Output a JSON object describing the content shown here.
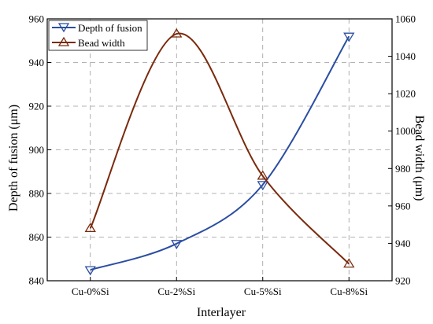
{
  "chart_data": {
    "type": "line",
    "categories": [
      "Cu-0%Si",
      "Cu-2%Si",
      "Cu-5%Si",
      "Cu-8%Si"
    ],
    "xlabel": "Interlayer",
    "ylabel": "Depth of fusion (μm)",
    "y2label": "Bead width (μm)",
    "ylim": [
      840,
      960
    ],
    "yticks": [
      840,
      860,
      880,
      900,
      920,
      940,
      960
    ],
    "y2lim": [
      920,
      1060
    ],
    "y2ticks": [
      920,
      940,
      960,
      980,
      1000,
      1020,
      1040,
      1060
    ],
    "grid": true,
    "legend": "top-left",
    "series": [
      {
        "name": "Depth of fusion",
        "axis": "left",
        "values": [
          845,
          857,
          884,
          952
        ],
        "color": "#2b4ea2",
        "marker": "triangle-down"
      },
      {
        "name": "Bead width",
        "axis": "right",
        "values": [
          948,
          1052,
          976,
          929
        ],
        "color": "#7a2a0c",
        "marker": "triangle-up"
      }
    ]
  }
}
